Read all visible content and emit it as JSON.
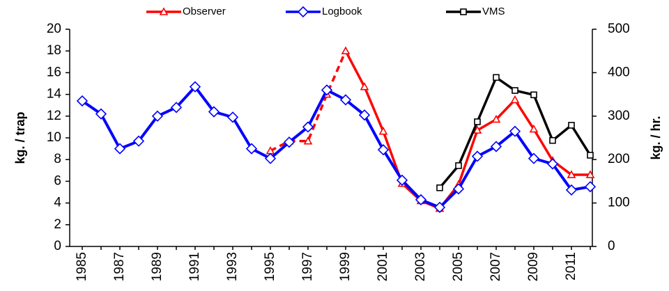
{
  "chart_data": {
    "type": "line",
    "y_label": "kg. / trap",
    "y2_label": "kg. / hr.",
    "categories": [
      "1985",
      null,
      "1987",
      null,
      "1989",
      null,
      "1991",
      null,
      "1993",
      null,
      "1995",
      null,
      "1997",
      null,
      "1999",
      null,
      "2001",
      null,
      "2003",
      null,
      "2005",
      null,
      "2007",
      null,
      "2009",
      null,
      "2011",
      null
    ],
    "ylim": [
      0,
      20
    ],
    "yticks": [
      0,
      2,
      4,
      6,
      8,
      10,
      12,
      14,
      16,
      18,
      20
    ],
    "y2lim": [
      0,
      500
    ],
    "y2ticks": [
      0,
      100,
      200,
      300,
      400,
      500
    ],
    "series": [
      {
        "name": "Observer",
        "color": "#ff0000",
        "marker": "triangle",
        "dashed_until": 14,
        "values": [
          null,
          null,
          null,
          null,
          null,
          null,
          null,
          null,
          null,
          null,
          8.8,
          9.7,
          9.7,
          14.0,
          18.0,
          14.7,
          10.6,
          5.8,
          4.2,
          3.5,
          5.7,
          10.7,
          11.7,
          13.5,
          10.8,
          7.9,
          6.6,
          6.6
        ]
      },
      {
        "name": "Logbook",
        "color": "#0000ff",
        "marker": "diamond",
        "values": [
          13.4,
          12.2,
          9.0,
          9.7,
          12.0,
          12.8,
          14.7,
          12.4,
          11.9,
          9.0,
          8.1,
          9.6,
          11.0,
          14.4,
          13.5,
          12.1,
          8.9,
          6.1,
          4.3,
          3.6,
          5.3,
          8.3,
          9.2,
          10.6,
          8.1,
          7.6,
          5.2,
          5.5
        ]
      },
      {
        "name": "VMS",
        "color": "#000000",
        "marker": "square",
        "axis": "y2",
        "values": [
          null,
          null,
          null,
          null,
          null,
          null,
          null,
          null,
          null,
          null,
          null,
          null,
          null,
          null,
          null,
          null,
          null,
          null,
          null,
          135,
          186,
          287,
          389,
          359,
          349,
          244,
          279,
          210
        ]
      }
    ]
  }
}
